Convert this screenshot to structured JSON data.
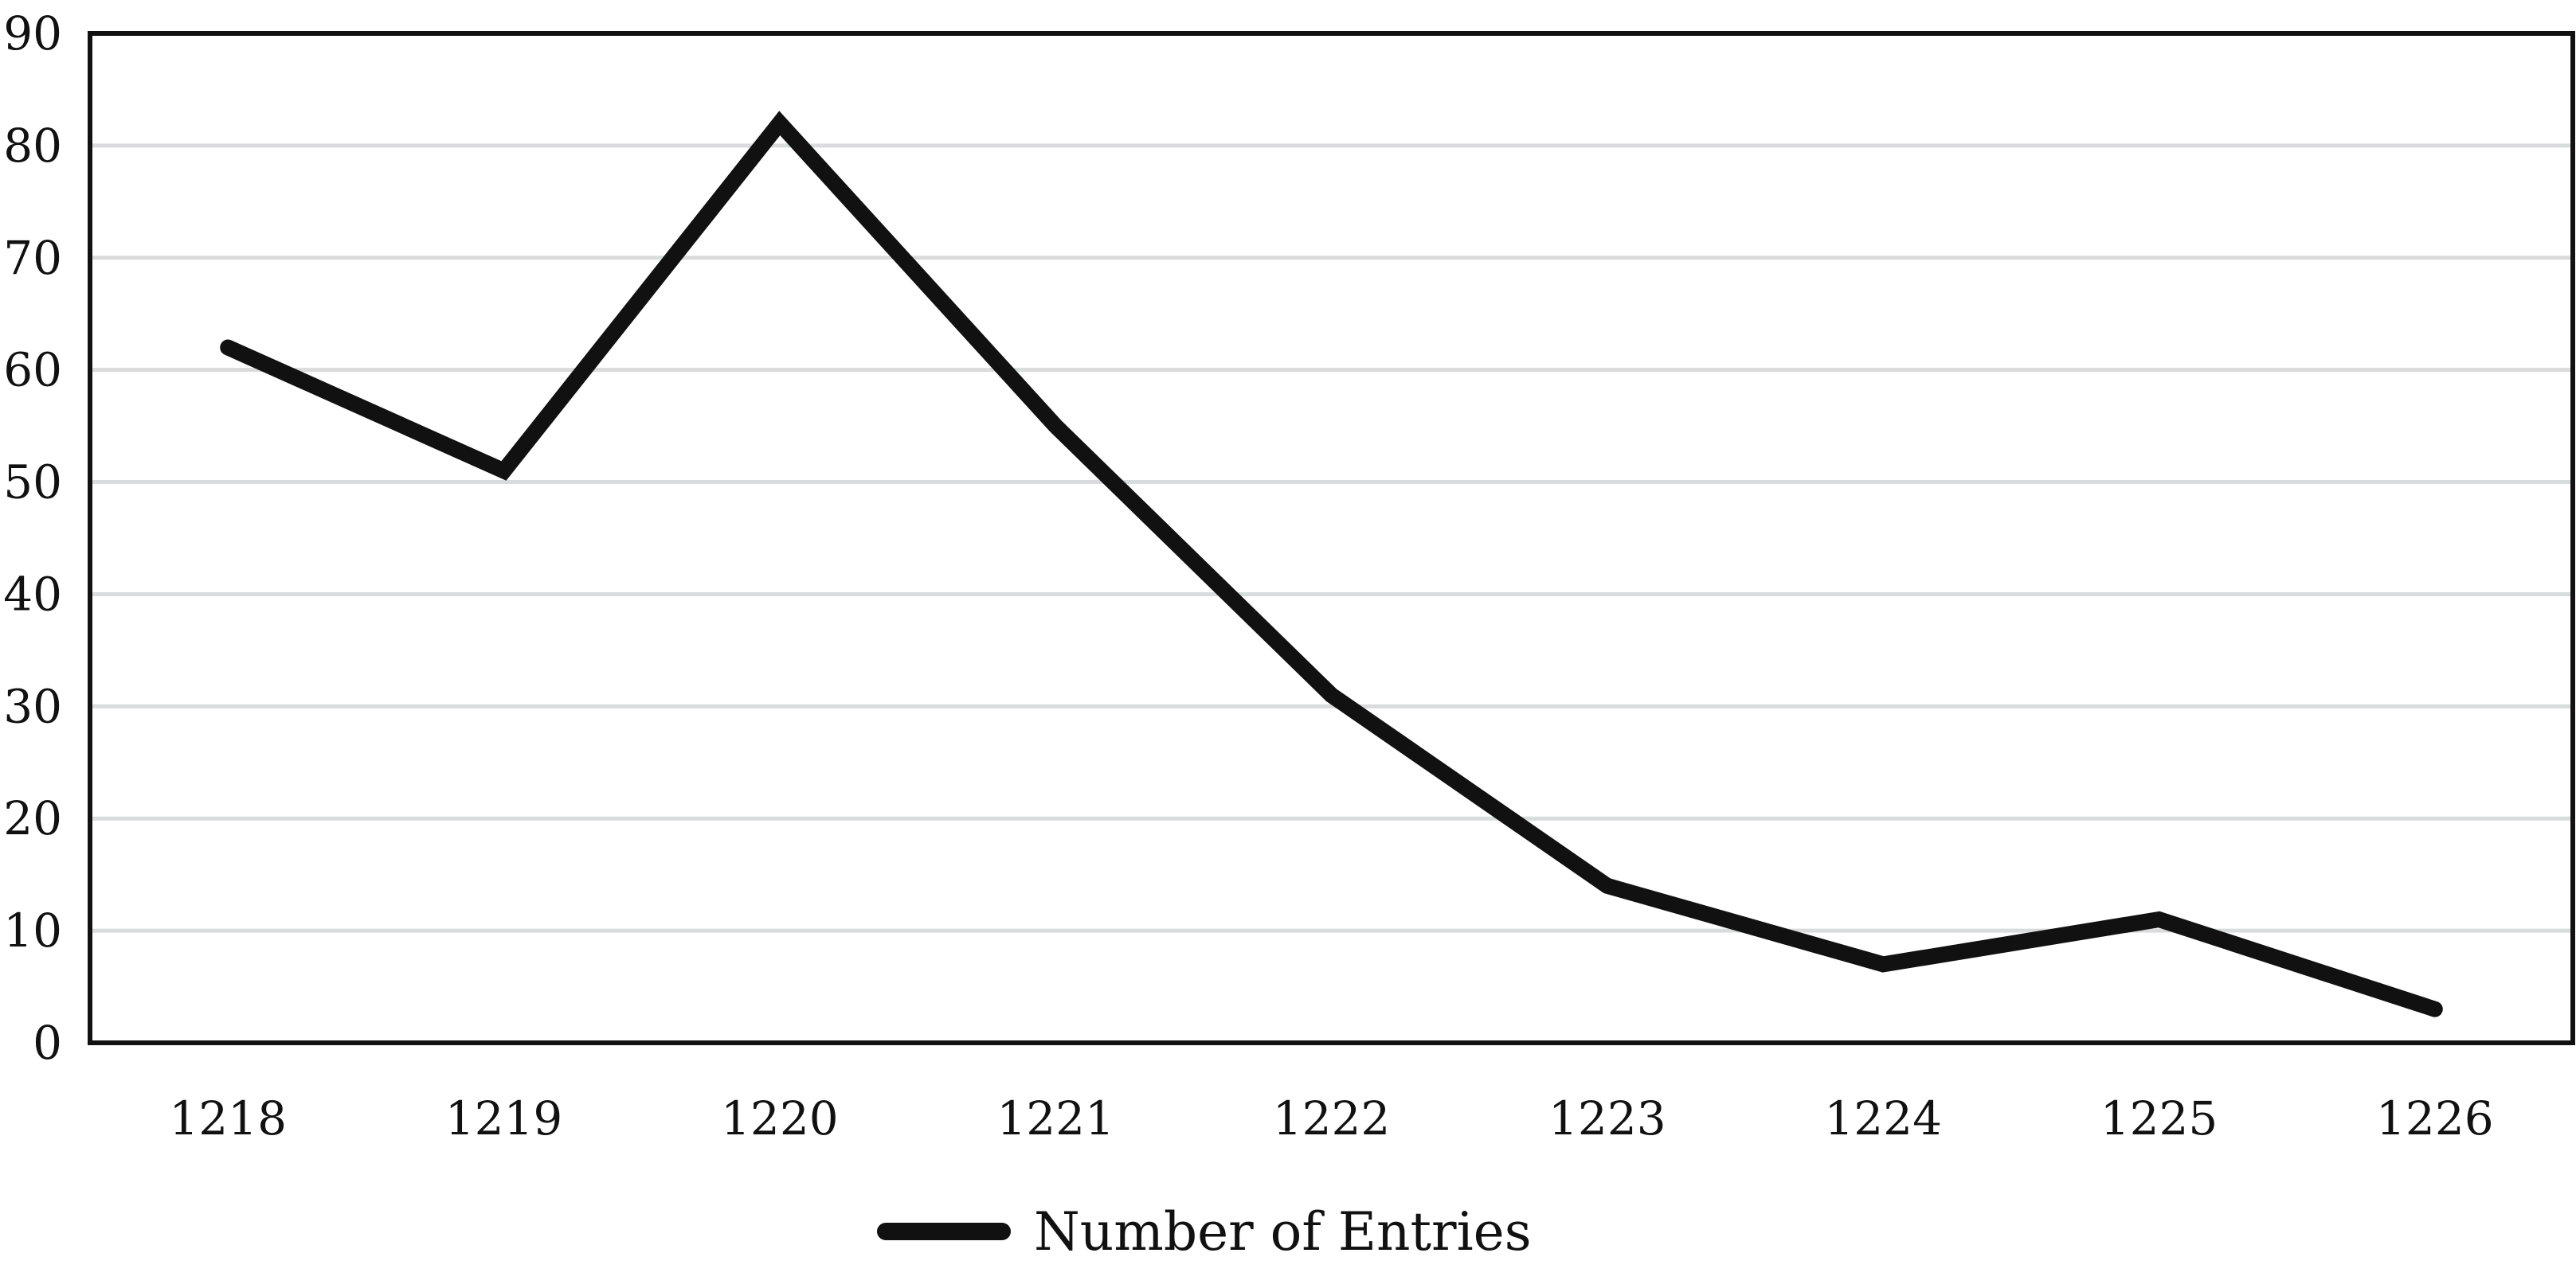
{
  "chart_data": {
    "type": "line",
    "categories": [
      "1218",
      "1219",
      "1220",
      "1221",
      "1222",
      "1223",
      "1224",
      "1225",
      "1226"
    ],
    "series": [
      {
        "name": "Number of Entries",
        "values": [
          62,
          51,
          82,
          55,
          31,
          14,
          7,
          11,
          3
        ]
      }
    ],
    "ylim": [
      0,
      90
    ],
    "yticks": [
      "0",
      "10",
      "20",
      "30",
      "40",
      "50",
      "60",
      "70",
      "80",
      "90"
    ],
    "grid": true,
    "legend_position": "bottom",
    "colors": {
      "line": "#111111",
      "grid": "#d9dcdc",
      "axis": "#111111"
    }
  }
}
